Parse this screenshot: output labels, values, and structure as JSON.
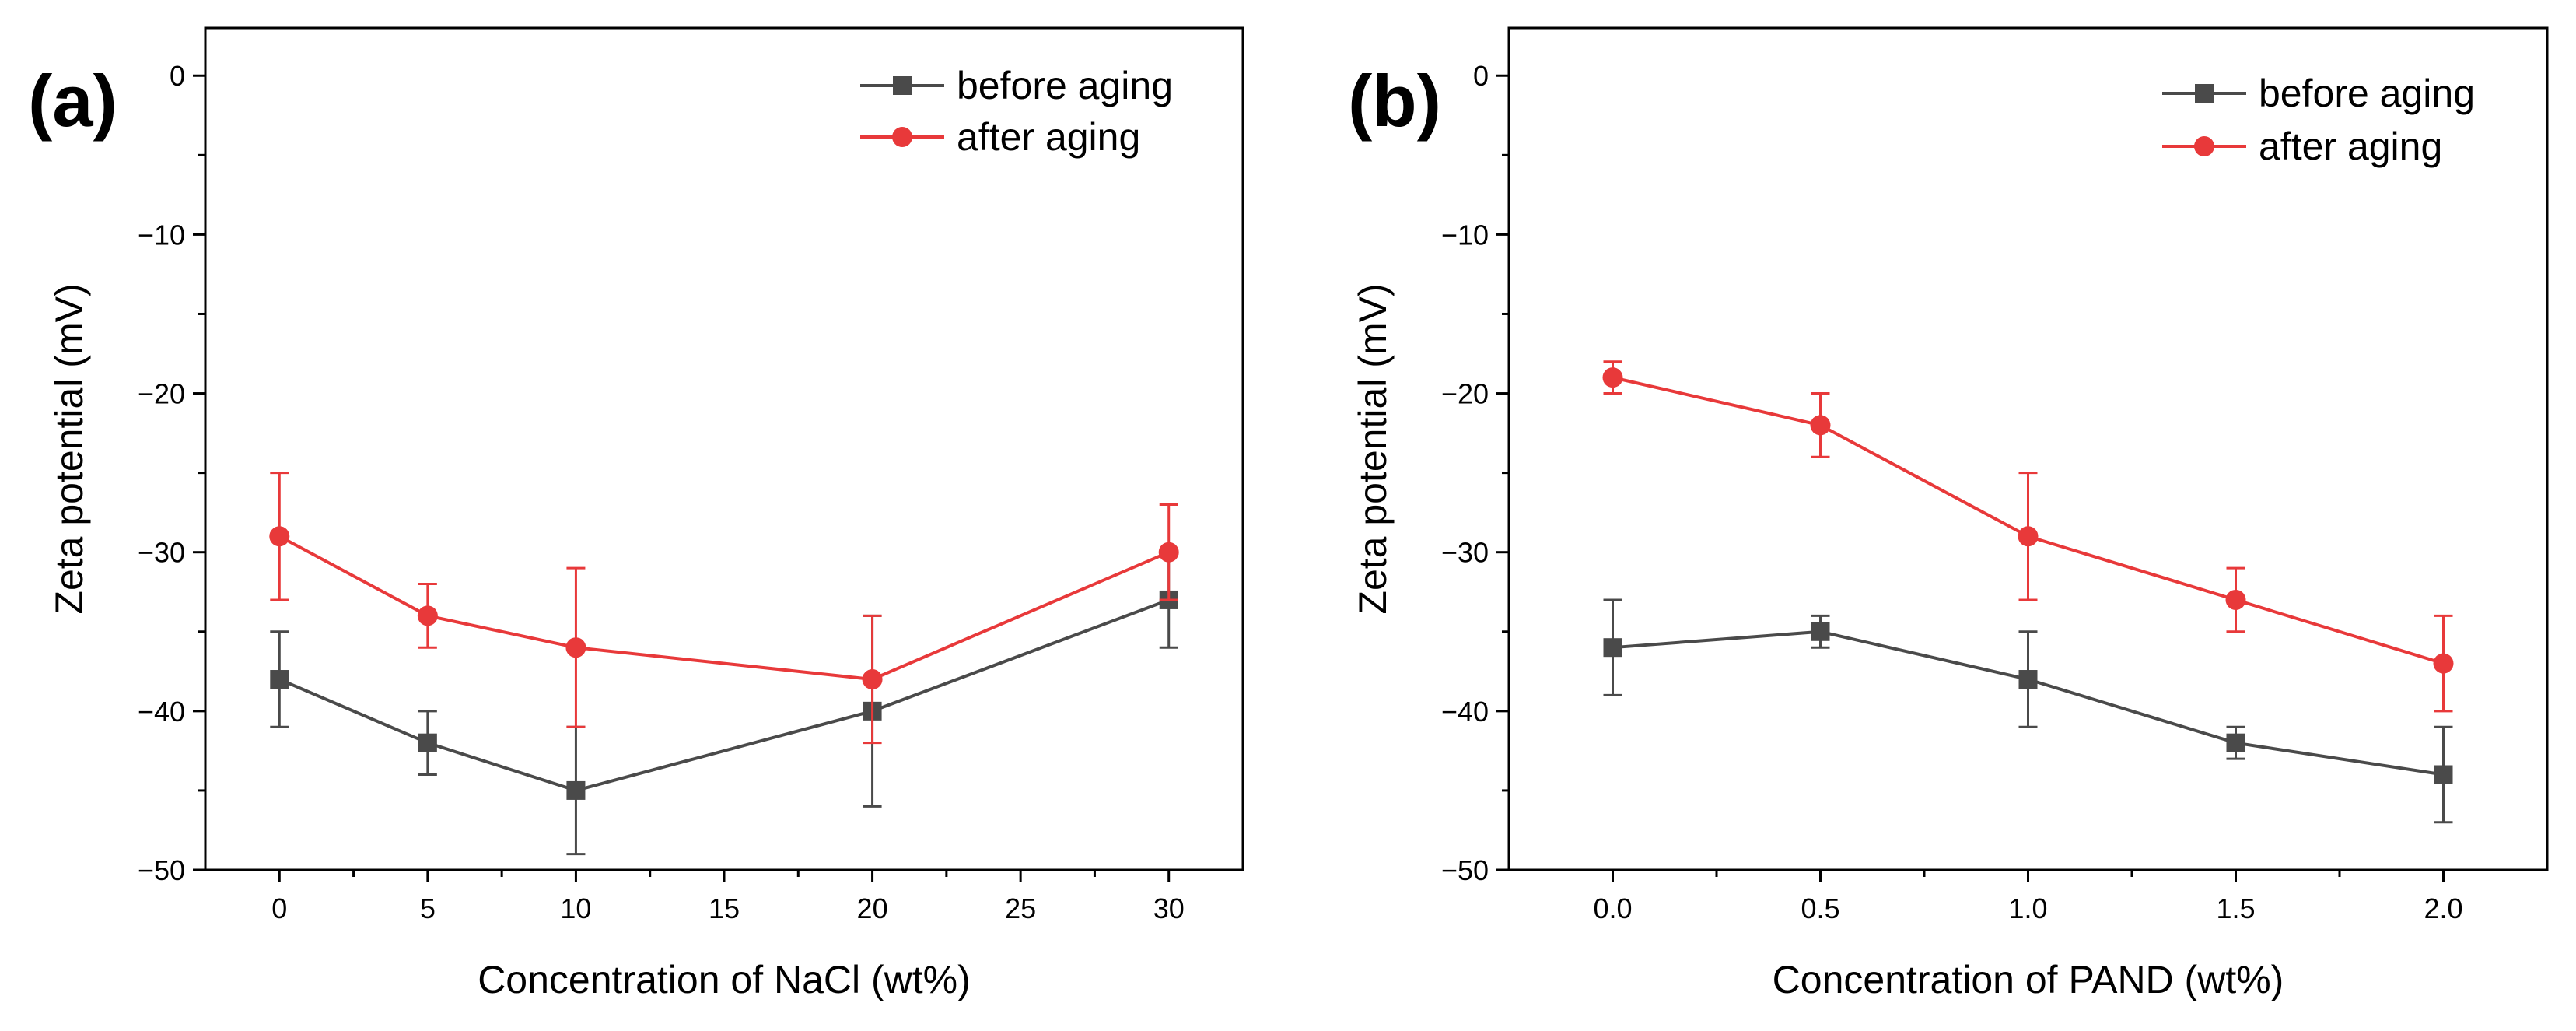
{
  "chart_data": [
    {
      "panel_label": "(a)",
      "type": "line",
      "xlabel": "Concentration of NaCl (wt%)",
      "ylabel": "Zeta potential (mV)",
      "xlim": [
        -2.5,
        32.5
      ],
      "ylim": [
        -50,
        3
      ],
      "x_ticks": [
        0,
        5,
        10,
        15,
        20,
        25,
        30
      ],
      "x_tick_labels": [
        "0",
        "5",
        "10",
        "15",
        "20",
        "25",
        "30"
      ],
      "y_ticks": [
        0,
        -10,
        -20,
        -30,
        -40,
        -50
      ],
      "y_tick_labels": [
        "0",
        "−10",
        "−20",
        "−30",
        "−40",
        "−50"
      ],
      "legend_position": "top-right",
      "series": [
        {
          "name": "before aging",
          "color": "#4a4a4a",
          "marker": "square",
          "x": [
            0,
            5,
            10,
            20,
            30
          ],
          "values": [
            -38,
            -42,
            -45,
            -40,
            -33
          ],
          "error": [
            3,
            2,
            4,
            6,
            3
          ]
        },
        {
          "name": "after aging",
          "color": "#e8393a",
          "marker": "circle",
          "x": [
            0,
            5,
            10,
            20,
            30
          ],
          "values": [
            -29,
            -34,
            -36,
            -38,
            -30
          ],
          "error": [
            4,
            2,
            5,
            4,
            3
          ]
        }
      ]
    },
    {
      "panel_label": "(b)",
      "type": "line",
      "xlabel": "Concentration of PAND (wt%)",
      "ylabel": "Zeta potential (mV)",
      "xlim": [
        -0.25,
        2.25
      ],
      "ylim": [
        -50,
        3
      ],
      "x_ticks": [
        0,
        0.5,
        1,
        1.5,
        2
      ],
      "x_tick_labels": [
        "0.0",
        "0.5",
        "1.0",
        "1.5",
        "2.0"
      ],
      "y_ticks": [
        0,
        -10,
        -20,
        -30,
        -40,
        -50
      ],
      "y_tick_labels": [
        "0",
        "−10",
        "−20",
        "−30",
        "−40",
        "−50"
      ],
      "legend_position": "top-right",
      "series": [
        {
          "name": "before aging",
          "color": "#4a4a4a",
          "marker": "square",
          "x": [
            0,
            0.5,
            1,
            1.5,
            2
          ],
          "values": [
            -36,
            -35,
            -38,
            -42,
            -44
          ],
          "error": [
            3,
            1,
            3,
            1,
            3
          ]
        },
        {
          "name": "after aging",
          "color": "#e8393a",
          "marker": "circle",
          "x": [
            0,
            0.5,
            1,
            1.5,
            2
          ],
          "values": [
            -19,
            -22,
            -29,
            -33,
            -37
          ],
          "error": [
            1,
            2,
            4,
            2,
            3
          ]
        }
      ]
    }
  ]
}
